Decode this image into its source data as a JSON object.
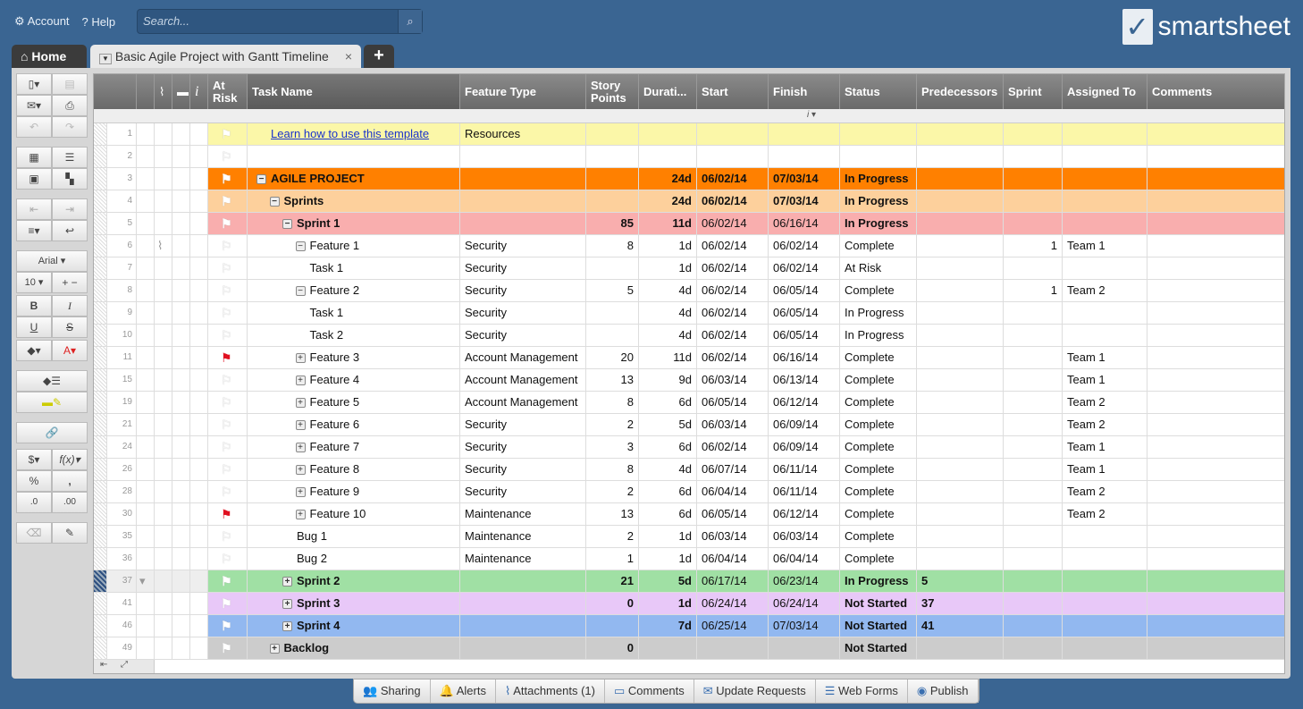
{
  "topbar": {
    "account": "Account",
    "help": "Help",
    "search_placeholder": "Search...",
    "logo": "smartsheet"
  },
  "tabs": {
    "home": "Home",
    "sheet": "Basic Agile Project with Gantt Timeline",
    "close": "×",
    "add": "+"
  },
  "toolbar": {
    "font": "Arial",
    "size": "10",
    "bold": "B",
    "italic": "I",
    "underline": "U",
    "strike": "S",
    "currency": "$",
    "formula": "f(x)",
    "percent": "%",
    "comma": ",",
    "dec_inc": ".0",
    "dec_dec": ".00"
  },
  "columns": [
    "At Risk",
    "Task Name",
    "Feature Type",
    "Story Points",
    "Durati...",
    "Start",
    "Finish",
    "Status",
    "Predecessors",
    "Sprint",
    "Assigned To",
    "Comments"
  ],
  "rows": [
    {
      "num": "1",
      "level": 0,
      "exp": "",
      "task": "Learn how to use this template",
      "link": true,
      "feature": "Resources",
      "points": "",
      "dur": "",
      "start": "",
      "finish": "",
      "status": "",
      "pred": "",
      "sprint": "",
      "assigned": "",
      "bg": "#fbf7a8",
      "bold": false,
      "flag": "white"
    },
    {
      "num": "2",
      "level": 0,
      "exp": "",
      "task": "",
      "feature": "",
      "points": "",
      "dur": "",
      "start": "",
      "finish": "",
      "status": "",
      "pred": "",
      "sprint": "",
      "assigned": "",
      "bg": "#ffffff",
      "bold": false,
      "flag": ""
    },
    {
      "num": "3",
      "level": 0,
      "exp": "-",
      "task": "AGILE PROJECT",
      "feature": "",
      "points": "",
      "dur": "24d",
      "start": "06/02/14",
      "finish": "07/03/14",
      "status": "In Progress",
      "pred": "",
      "sprint": "",
      "assigned": "",
      "bg": "#ff8000",
      "bold": true,
      "flag": "white"
    },
    {
      "num": "4",
      "level": 1,
      "exp": "-",
      "task": "Sprints",
      "feature": "",
      "points": "",
      "dur": "24d",
      "start": "06/02/14",
      "finish": "07/03/14",
      "status": "In Progress",
      "pred": "",
      "sprint": "",
      "assigned": "",
      "bg": "#fdd09c",
      "bold": true,
      "flag": "white"
    },
    {
      "num": "5",
      "level": 2,
      "exp": "-",
      "task": "Sprint 1",
      "feature": "",
      "points": "85",
      "dur": "11d",
      "start": "06/02/14",
      "finish": "06/16/14",
      "status": "In Progress",
      "pred": "",
      "sprint": "",
      "assigned": "",
      "bg": "#f9aeae",
      "bold": true,
      "flag": "white"
    },
    {
      "num": "6",
      "level": 3,
      "exp": "-",
      "task": "Feature 1",
      "feature": "Security",
      "points": "8",
      "dur": "1d",
      "start": "06/02/14",
      "finish": "06/02/14",
      "status": "Complete",
      "pred": "",
      "sprint": "1",
      "assigned": "Team 1",
      "bg": "#ffffff",
      "bold": false,
      "flag": "",
      "attach": true
    },
    {
      "num": "7",
      "level": 4,
      "exp": "",
      "task": "Task 1",
      "feature": "Security",
      "points": "",
      "dur": "1d",
      "start": "06/02/14",
      "finish": "06/02/14",
      "status": "At Risk",
      "pred": "",
      "sprint": "",
      "assigned": "",
      "bg": "#ffffff",
      "bold": false,
      "flag": ""
    },
    {
      "num": "8",
      "level": 3,
      "exp": "-",
      "task": "Feature 2",
      "feature": "Security",
      "points": "5",
      "dur": "4d",
      "start": "06/02/14",
      "finish": "06/05/14",
      "status": "Complete",
      "pred": "",
      "sprint": "1",
      "assigned": "Team 2",
      "bg": "#ffffff",
      "bold": false,
      "flag": ""
    },
    {
      "num": "9",
      "level": 4,
      "exp": "",
      "task": "Task 1",
      "feature": "Security",
      "points": "",
      "dur": "4d",
      "start": "06/02/14",
      "finish": "06/05/14",
      "status": "In Progress",
      "pred": "",
      "sprint": "",
      "assigned": "",
      "bg": "#ffffff",
      "bold": false,
      "flag": ""
    },
    {
      "num": "10",
      "level": 4,
      "exp": "",
      "task": "Task 2",
      "feature": "Security",
      "points": "",
      "dur": "4d",
      "start": "06/02/14",
      "finish": "06/05/14",
      "status": "In Progress",
      "pred": "",
      "sprint": "",
      "assigned": "",
      "bg": "#ffffff",
      "bold": false,
      "flag": ""
    },
    {
      "num": "11",
      "level": 3,
      "exp": "+",
      "task": "Feature 3",
      "feature": "Account Management",
      "points": "20",
      "dur": "11d",
      "start": "06/02/14",
      "finish": "06/16/14",
      "status": "Complete",
      "pred": "",
      "sprint": "",
      "assigned": "Team 1",
      "bg": "#ffffff",
      "bold": false,
      "flag": "red"
    },
    {
      "num": "15",
      "level": 3,
      "exp": "+",
      "task": "Feature 4",
      "feature": "Account Management",
      "points": "13",
      "dur": "9d",
      "start": "06/03/14",
      "finish": "06/13/14",
      "status": "Complete",
      "pred": "",
      "sprint": "",
      "assigned": "Team 1",
      "bg": "#ffffff",
      "bold": false,
      "flag": ""
    },
    {
      "num": "19",
      "level": 3,
      "exp": "+",
      "task": "Feature 5",
      "feature": "Account Management",
      "points": "8",
      "dur": "6d",
      "start": "06/05/14",
      "finish": "06/12/14",
      "status": "Complete",
      "pred": "",
      "sprint": "",
      "assigned": "Team 2",
      "bg": "#ffffff",
      "bold": false,
      "flag": ""
    },
    {
      "num": "21",
      "level": 3,
      "exp": "+",
      "task": "Feature 6",
      "feature": "Security",
      "points": "2",
      "dur": "5d",
      "start": "06/03/14",
      "finish": "06/09/14",
      "status": "Complete",
      "pred": "",
      "sprint": "",
      "assigned": "Team 2",
      "bg": "#ffffff",
      "bold": false,
      "flag": ""
    },
    {
      "num": "24",
      "level": 3,
      "exp": "+",
      "task": "Feature 7",
      "feature": "Security",
      "points": "3",
      "dur": "6d",
      "start": "06/02/14",
      "finish": "06/09/14",
      "status": "Complete",
      "pred": "",
      "sprint": "",
      "assigned": "Team 1",
      "bg": "#ffffff",
      "bold": false,
      "flag": ""
    },
    {
      "num": "26",
      "level": 3,
      "exp": "+",
      "task": "Feature 8",
      "feature": "Security",
      "points": "8",
      "dur": "4d",
      "start": "06/07/14",
      "finish": "06/11/14",
      "status": "Complete",
      "pred": "",
      "sprint": "",
      "assigned": "Team 1",
      "bg": "#ffffff",
      "bold": false,
      "flag": ""
    },
    {
      "num": "28",
      "level": 3,
      "exp": "+",
      "task": "Feature 9",
      "feature": "Security",
      "points": "2",
      "dur": "6d",
      "start": "06/04/14",
      "finish": "06/11/14",
      "status": "Complete",
      "pred": "",
      "sprint": "",
      "assigned": "Team 2",
      "bg": "#ffffff",
      "bold": false,
      "flag": ""
    },
    {
      "num": "30",
      "level": 3,
      "exp": "+",
      "task": "Feature 10",
      "feature": "Maintenance",
      "points": "13",
      "dur": "6d",
      "start": "06/05/14",
      "finish": "06/12/14",
      "status": "Complete",
      "pred": "",
      "sprint": "",
      "assigned": "Team 2",
      "bg": "#ffffff",
      "bold": false,
      "flag": "red"
    },
    {
      "num": "35",
      "level": 3,
      "exp": "",
      "task": "Bug 1",
      "feature": "Maintenance",
      "points": "2",
      "dur": "1d",
      "start": "06/03/14",
      "finish": "06/03/14",
      "status": "Complete",
      "pred": "",
      "sprint": "",
      "assigned": "",
      "bg": "#ffffff",
      "bold": false,
      "flag": ""
    },
    {
      "num": "36",
      "level": 3,
      "exp": "",
      "task": "Bug 2",
      "feature": "Maintenance",
      "points": "1",
      "dur": "1d",
      "start": "06/04/14",
      "finish": "06/04/14",
      "status": "Complete",
      "pred": "",
      "sprint": "",
      "assigned": "",
      "bg": "#ffffff",
      "bold": false,
      "flag": ""
    },
    {
      "num": "37",
      "level": 2,
      "exp": "+",
      "task": "Sprint 2",
      "feature": "",
      "points": "21",
      "dur": "5d",
      "start": "06/17/14",
      "finish": "06/23/14",
      "status": "In Progress",
      "pred": "5",
      "sprint": "",
      "assigned": "",
      "bg": "#a0e0a4",
      "bold": true,
      "flag": "white",
      "selected": true
    },
    {
      "num": "41",
      "level": 2,
      "exp": "+",
      "task": "Sprint 3",
      "feature": "",
      "points": "0",
      "dur": "1d",
      "start": "06/24/14",
      "finish": "06/24/14",
      "status": "Not Started",
      "pred": "37",
      "sprint": "",
      "assigned": "",
      "bg": "#e8c8f8",
      "bold": true,
      "flag": "white"
    },
    {
      "num": "46",
      "level": 2,
      "exp": "+",
      "task": "Sprint 4",
      "feature": "",
      "points": "",
      "dur": "7d",
      "start": "06/25/14",
      "finish": "07/03/14",
      "status": "Not Started",
      "pred": "41",
      "sprint": "",
      "assigned": "",
      "bg": "#92b8f0",
      "bold": true,
      "flag": "white"
    },
    {
      "num": "49",
      "level": 1,
      "exp": "+",
      "task": "Backlog",
      "feature": "",
      "points": "0",
      "dur": "",
      "start": "",
      "finish": "",
      "status": "Not Started",
      "pred": "",
      "sprint": "",
      "assigned": "",
      "bg": "#cccccc",
      "bold": true,
      "flag": "white"
    }
  ],
  "bottom": [
    "Sharing",
    "Alerts",
    "Attachments (1)",
    "Comments",
    "Update Requests",
    "Web Forms",
    "Publish"
  ]
}
